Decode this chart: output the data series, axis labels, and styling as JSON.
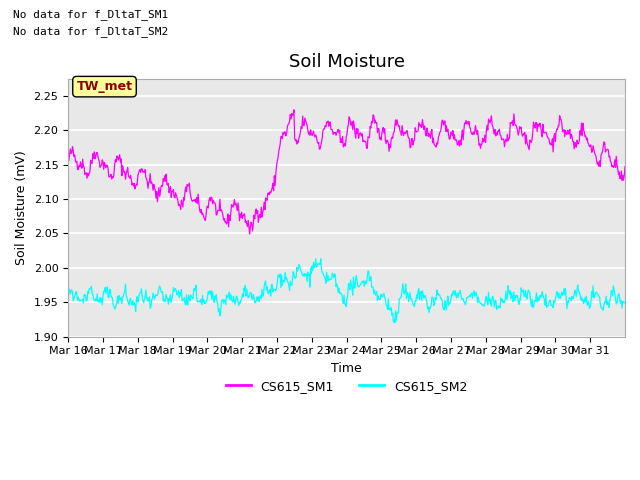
{
  "title": "Soil Moisture",
  "ylabel": "Soil Moisture (mV)",
  "xlabel": "Time",
  "text_no_data_1": "No data for f_DltaT_SM1",
  "text_no_data_2": "No data for f_DltaT_SM2",
  "legend_box_label": "TW_met",
  "ylim": [
    1.9,
    2.275
  ],
  "yticks": [
    1.9,
    1.95,
    2.0,
    2.05,
    2.1,
    2.15,
    2.2,
    2.25
  ],
  "x_tick_labels": [
    "Mar 16",
    "Mar 17",
    "Mar 18",
    "Mar 19",
    "Mar 20",
    "Mar 21",
    "Mar 22",
    "Mar 23",
    "Mar 24",
    "Mar 25",
    "Mar 26",
    "Mar 27",
    "Mar 28",
    "Mar 29",
    "Mar 30",
    "Mar 31"
  ],
  "color_sm1": "#FF00FF",
  "color_sm2": "#00FFFF",
  "legend_label_sm1": "CS615_SM1",
  "legend_label_sm2": "CS615_SM2",
  "background_color": "#E8E8E8",
  "grid_color": "#FFFFFF",
  "title_fontsize": 13,
  "axis_label_fontsize": 9,
  "tick_fontsize": 8
}
